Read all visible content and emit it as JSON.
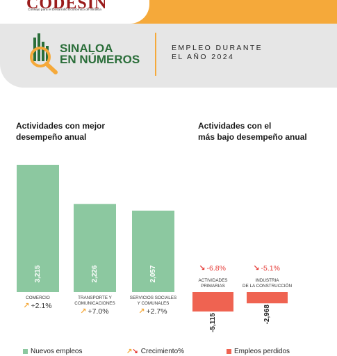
{
  "header": {
    "logo_text": "CODESIN",
    "logo_subtitle": "Consejo para el Desarrollo Económico de Sinaloa",
    "title_line1": "SINALOA",
    "title_line2": "EN NÚMEROS",
    "subtitle_line1": "EMPLEO DURANTE",
    "subtitle_line2": "EL AÑO 2024"
  },
  "colors": {
    "orange": "#f5a93a",
    "green_bar": "#8cc8a0",
    "red_bar": "#ef6351",
    "brand_green": "#2b6e3a"
  },
  "chart_data": [
    {
      "type": "bar",
      "title_line1": "Actividades con mejor",
      "title_line2": "desempeño anual",
      "categories": [
        [
          "COMERCIO"
        ],
        [
          "TRANSPORTE Y",
          "COMUNICACIONES"
        ],
        [
          "SERVICIOS SOCIALES",
          "Y COMUNALES"
        ]
      ],
      "values": [
        3215,
        2226,
        2057
      ],
      "value_labels": [
        "3,215",
        "2,226",
        "2,057"
      ],
      "growth": [
        "+2.1%",
        "+7.0%",
        "+2.7%"
      ],
      "series_name": "Nuevos empleos"
    },
    {
      "type": "bar",
      "title_line1": "Actividades con el",
      "title_line2": "más bajo desempeño anual",
      "categories": [
        [
          "ACTIVIDADES",
          "PRIMARIAS"
        ],
        [
          "INDUSTRIA",
          "DE LA CONSTRUCCIÓN"
        ]
      ],
      "values": [
        -5115,
        -2968
      ],
      "value_labels": [
        "-5,115",
        "-2,968"
      ],
      "growth": [
        "-6.8%",
        "-5.1%"
      ],
      "series_name": "Empleos perdidos"
    }
  ],
  "legend": {
    "new_jobs": "Nuevos empleos",
    "growth": "Crecimiento%",
    "lost_jobs": "Empleos perdidos"
  }
}
